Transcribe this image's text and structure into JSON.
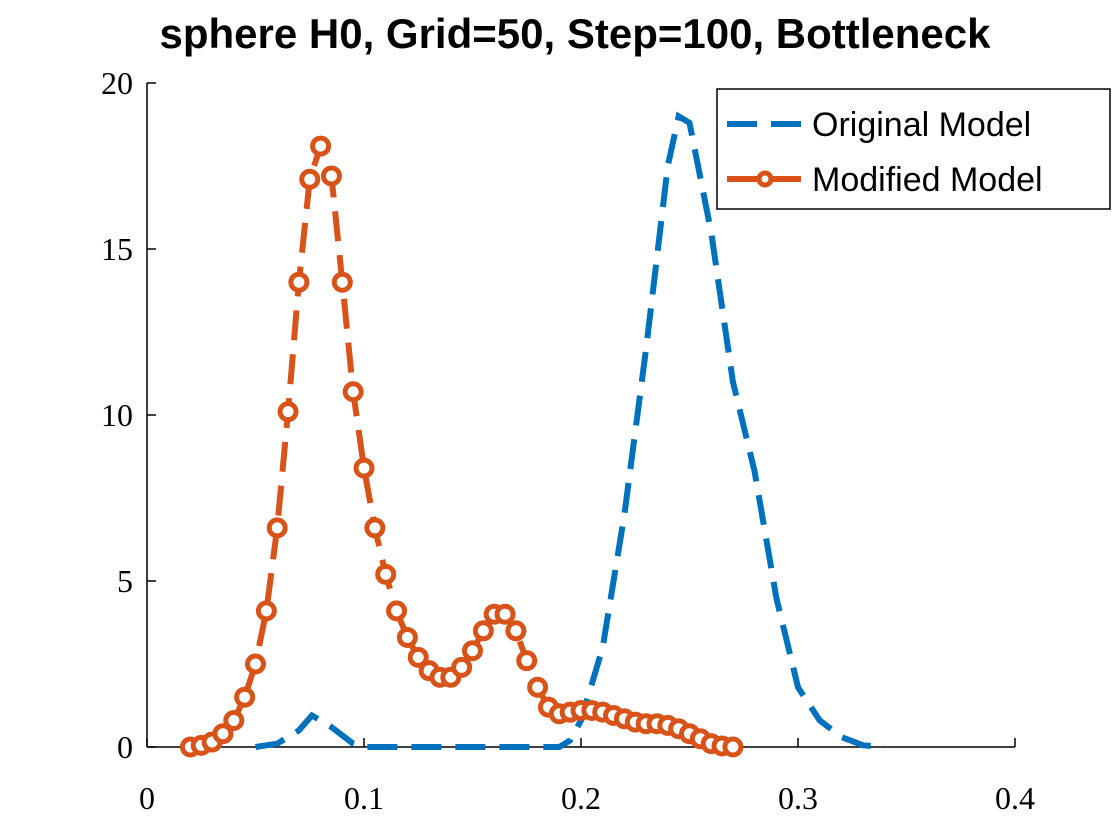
{
  "chart_data": {
    "type": "line",
    "title": "sphere H0, Grid=50, Step=100, Bottleneck",
    "xlim": [
      0,
      0.4
    ],
    "ylim": [
      0,
      20
    ],
    "xticks": [
      0,
      0.1,
      0.2,
      0.3,
      0.4
    ],
    "yticks": [
      0,
      5,
      10,
      15,
      20
    ],
    "legend": "upper right",
    "series": [
      {
        "name": "Original Model",
        "color": "#0072bd",
        "dashed": true,
        "markers": false,
        "x": [
          0.05,
          0.06,
          0.07,
          0.076,
          0.085,
          0.095,
          0.1,
          0.19,
          0.195,
          0.2,
          0.21,
          0.22,
          0.23,
          0.24,
          0.245,
          0.25,
          0.26,
          0.27,
          0.28,
          0.29,
          0.3,
          0.31,
          0.32,
          0.33,
          0.34
        ],
        "values": [
          0,
          0.1,
          0.5,
          0.95,
          0.6,
          0.1,
          0,
          0,
          0.2,
          0.8,
          3,
          7,
          12,
          17.5,
          19,
          18.8,
          15.5,
          11,
          8.3,
          4.5,
          1.8,
          0.8,
          0.3,
          0.05,
          0
        ]
      },
      {
        "name": "Modified Model",
        "color": "#d95319",
        "dashed": true,
        "markers": true,
        "x": [
          0.02,
          0.025,
          0.03,
          0.035,
          0.04,
          0.045,
          0.05,
          0.055,
          0.06,
          0.065,
          0.07,
          0.075,
          0.08,
          0.085,
          0.09,
          0.095,
          0.1,
          0.105,
          0.11,
          0.115,
          0.12,
          0.125,
          0.13,
          0.135,
          0.14,
          0.145,
          0.15,
          0.155,
          0.16,
          0.165,
          0.17,
          0.175,
          0.18,
          0.185,
          0.19,
          0.195,
          0.2,
          0.205,
          0.21,
          0.215,
          0.22,
          0.225,
          0.23,
          0.235,
          0.24,
          0.245,
          0.25,
          0.255,
          0.26,
          0.265,
          0.27
        ],
        "values": [
          0,
          0.05,
          0.15,
          0.4,
          0.8,
          1.5,
          2.5,
          4.1,
          6.6,
          10.1,
          14,
          17.1,
          18.1,
          17.2,
          14,
          10.7,
          8.4,
          6.6,
          5.2,
          4.1,
          3.3,
          2.7,
          2.3,
          2.1,
          2.1,
          2.4,
          2.9,
          3.5,
          4,
          4,
          3.5,
          2.6,
          1.8,
          1.2,
          1,
          1.05,
          1.1,
          1.1,
          1.05,
          0.95,
          0.85,
          0.75,
          0.7,
          0.7,
          0.65,
          0.55,
          0.4,
          0.25,
          0.1,
          0.03,
          0
        ]
      }
    ]
  }
}
